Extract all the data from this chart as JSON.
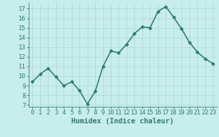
{
  "x": [
    0,
    1,
    2,
    3,
    4,
    5,
    6,
    7,
    8,
    9,
    10,
    11,
    12,
    13,
    14,
    15,
    16,
    17,
    18,
    19,
    20,
    21,
    22,
    23
  ],
  "y": [
    9.4,
    10.2,
    10.8,
    9.9,
    9.0,
    9.4,
    8.5,
    7.1,
    8.4,
    11.0,
    12.6,
    12.4,
    13.3,
    14.4,
    15.1,
    15.0,
    16.7,
    17.2,
    16.1,
    14.9,
    13.5,
    12.5,
    11.8,
    11.3
  ],
  "line_color": "#2d7d6b",
  "marker": "D",
  "marker_size": 2.5,
  "bg_color": "#c8eded",
  "grid_color": "#b0d8d8",
  "xlabel": "Humidex (Indice chaleur)",
  "ylabel_ticks": [
    7,
    8,
    9,
    10,
    11,
    12,
    13,
    14,
    15,
    16,
    17
  ],
  "ylim": [
    6.8,
    17.6
  ],
  "xlim": [
    -0.5,
    23.5
  ],
  "xticks": [
    0,
    1,
    2,
    3,
    4,
    5,
    6,
    7,
    8,
    9,
    10,
    11,
    12,
    13,
    14,
    15,
    16,
    17,
    18,
    19,
    20,
    21,
    22,
    23
  ],
  "font_color": "#2d7d6b",
  "linewidth": 1.2,
  "tick_fontsize": 6.5,
  "xlabel_fontsize": 7.5
}
